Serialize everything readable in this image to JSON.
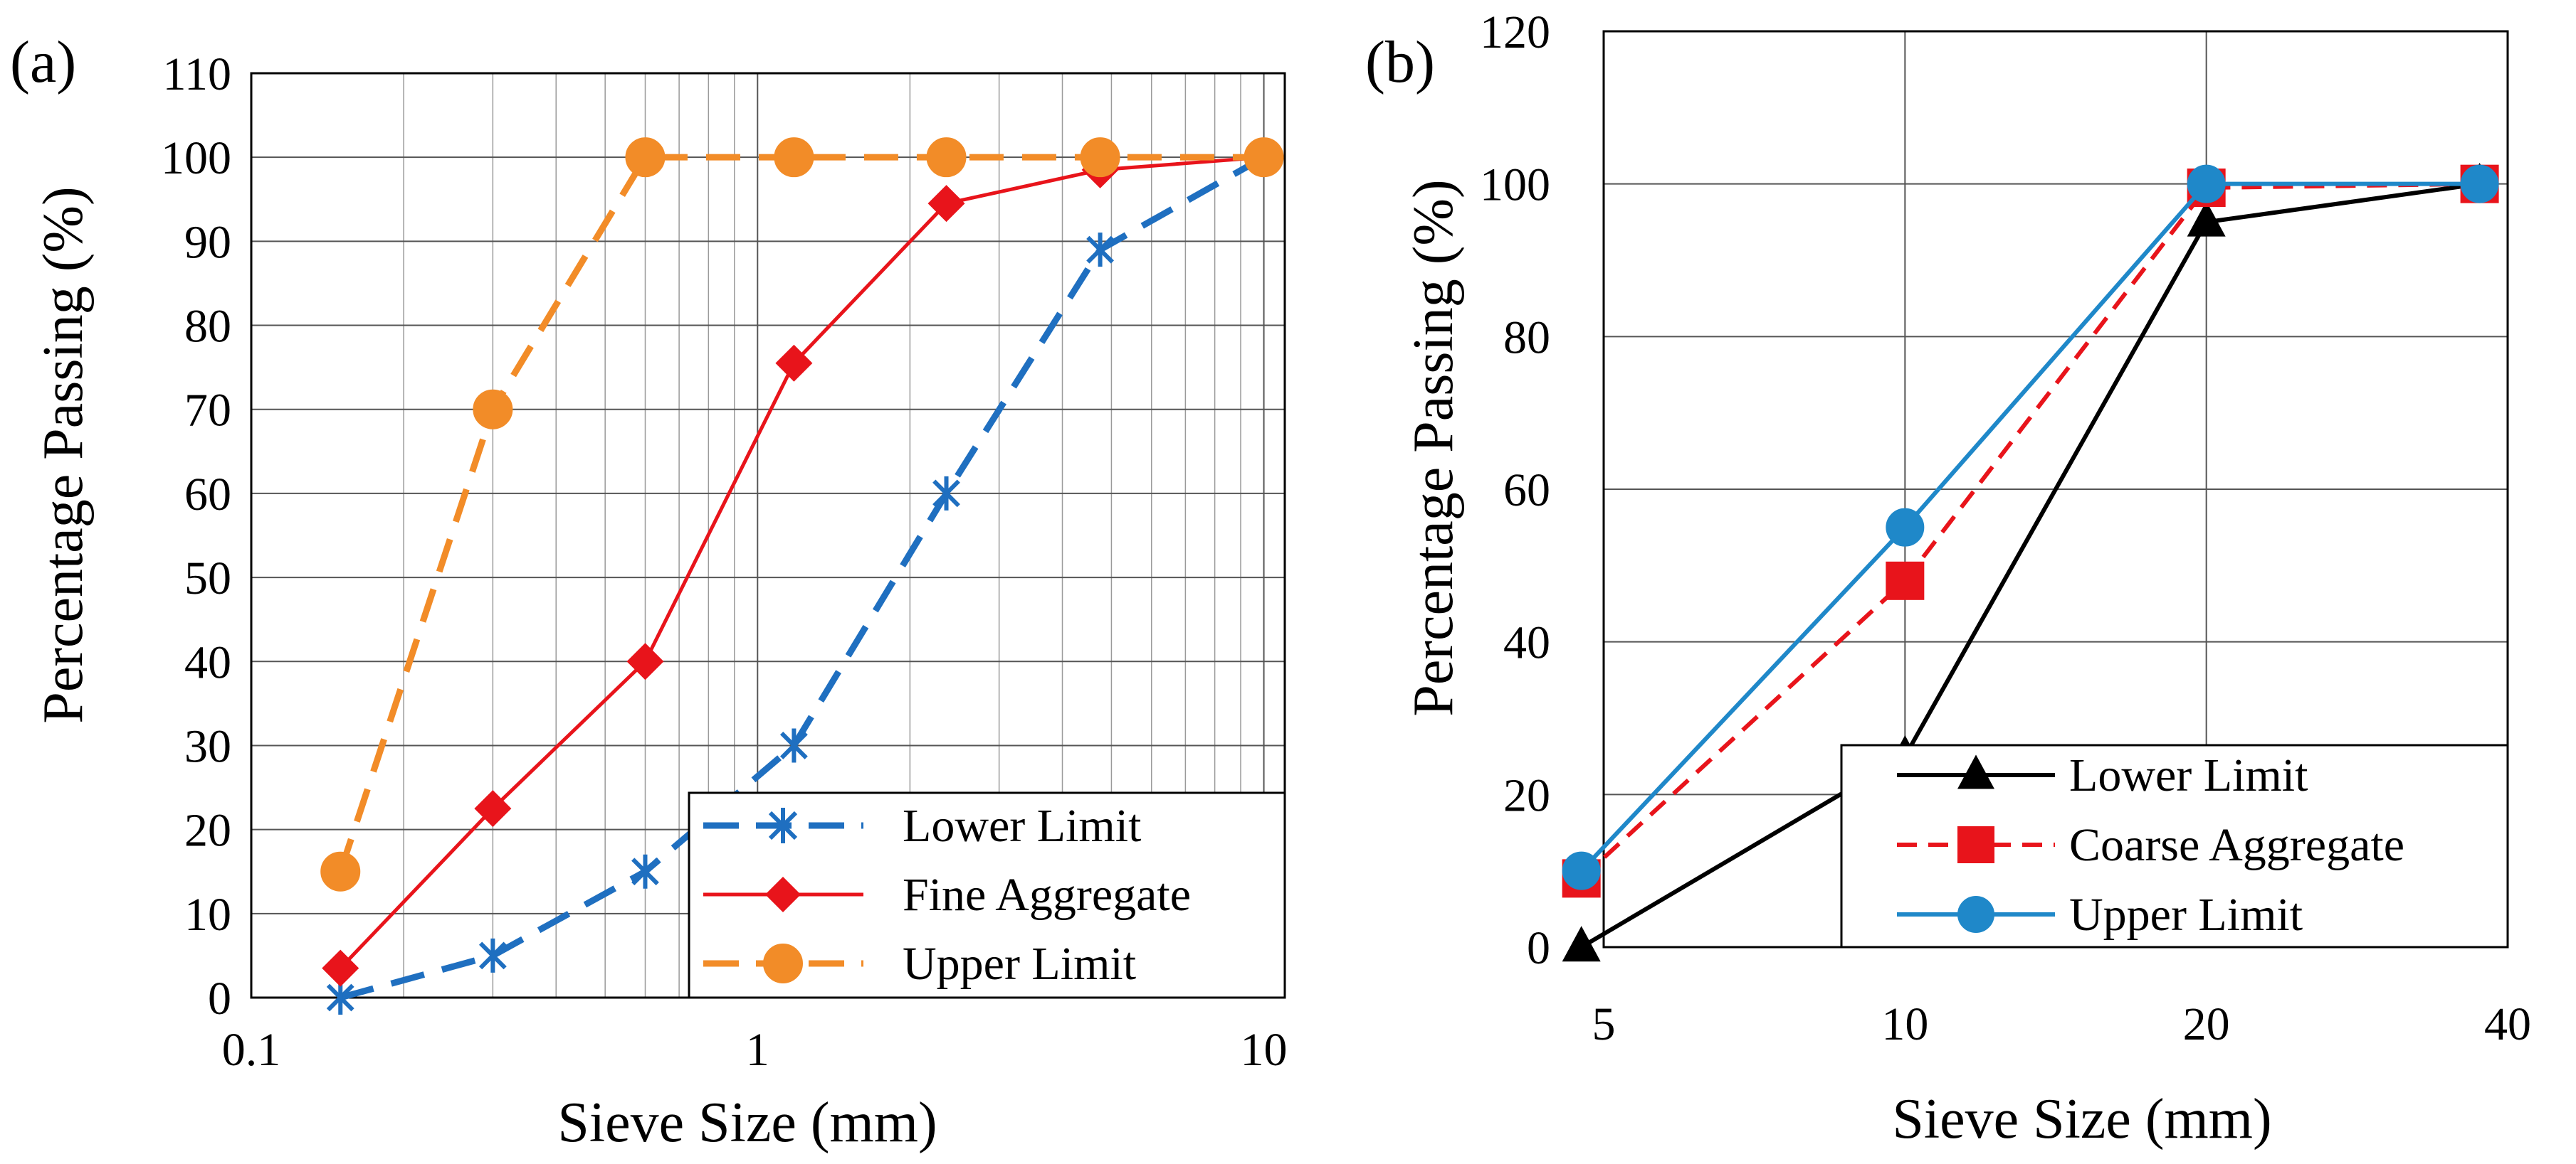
{
  "chart_data": [
    {
      "panel": "(a)",
      "type": "line",
      "xscale": "log",
      "xlabel": "Sieve Size (mm)",
      "ylabel": "Percentage Passing (%)",
      "xlim": [
        0.1,
        11
      ],
      "ylim": [
        0,
        110
      ],
      "x_ticks": [
        "0.1",
        "1",
        "10"
      ],
      "y_ticks": [
        "0",
        "10",
        "20",
        "30",
        "40",
        "50",
        "60",
        "70",
        "80",
        "90",
        "100",
        "110"
      ],
      "grid": true,
      "legend_position": "bottom-right",
      "series": [
        {
          "name": "Lower Limit",
          "color": "#1f6fc0",
          "line": "dashed",
          "marker": "asterisk",
          "x": [
            0.15,
            0.3,
            0.6,
            1.18,
            2.36,
            4.75,
            10
          ],
          "values": [
            0,
            5,
            15,
            30,
            60,
            89,
            100
          ]
        },
        {
          "name": "Fine Aggregate",
          "color": "#e8141b",
          "line": "solid",
          "marker": "diamond",
          "x": [
            0.15,
            0.3,
            0.6,
            1.18,
            2.36,
            4.75,
            10
          ],
          "values": [
            3.5,
            22.5,
            40,
            75.5,
            94.5,
            98.5,
            100
          ]
        },
        {
          "name": "Upper Limit",
          "color": "#f28c28",
          "line": "dashed",
          "marker": "circle",
          "x": [
            0.15,
            0.3,
            0.6,
            1.18,
            2.36,
            4.75,
            10
          ],
          "values": [
            15,
            70,
            100,
            100,
            100,
            100,
            100
          ]
        }
      ]
    },
    {
      "panel": "(b)",
      "type": "line",
      "xscale": "log",
      "xlabel": "Sieve Size (mm)",
      "ylabel": "Percentage Passing (%)",
      "xlim": [
        5,
        40
      ],
      "ylim": [
        0,
        120
      ],
      "x_ticks": [
        "5",
        "10",
        "20",
        "40"
      ],
      "y_ticks": [
        "0",
        "20",
        "40",
        "60",
        "80",
        "100",
        "120"
      ],
      "grid": true,
      "legend_position": "bottom-right",
      "series": [
        {
          "name": "Lower Limit",
          "color": "#000000",
          "line": "solid",
          "marker": "triangle",
          "x": [
            4.75,
            10,
            20,
            37.5
          ],
          "values": [
            0,
            25,
            95,
            100
          ]
        },
        {
          "name": "Coarse Aggregate",
          "color": "#e8141b",
          "line": "dashed",
          "marker": "square",
          "x": [
            4.75,
            10,
            20,
            37.5
          ],
          "values": [
            9,
            48,
            99.5,
            100
          ]
        },
        {
          "name": "Upper Limit",
          "color": "#1f88c9",
          "line": "solid",
          "marker": "circle",
          "x": [
            4.75,
            10,
            20,
            37.5
          ],
          "values": [
            10,
            55,
            100,
            100
          ]
        }
      ]
    }
  ]
}
